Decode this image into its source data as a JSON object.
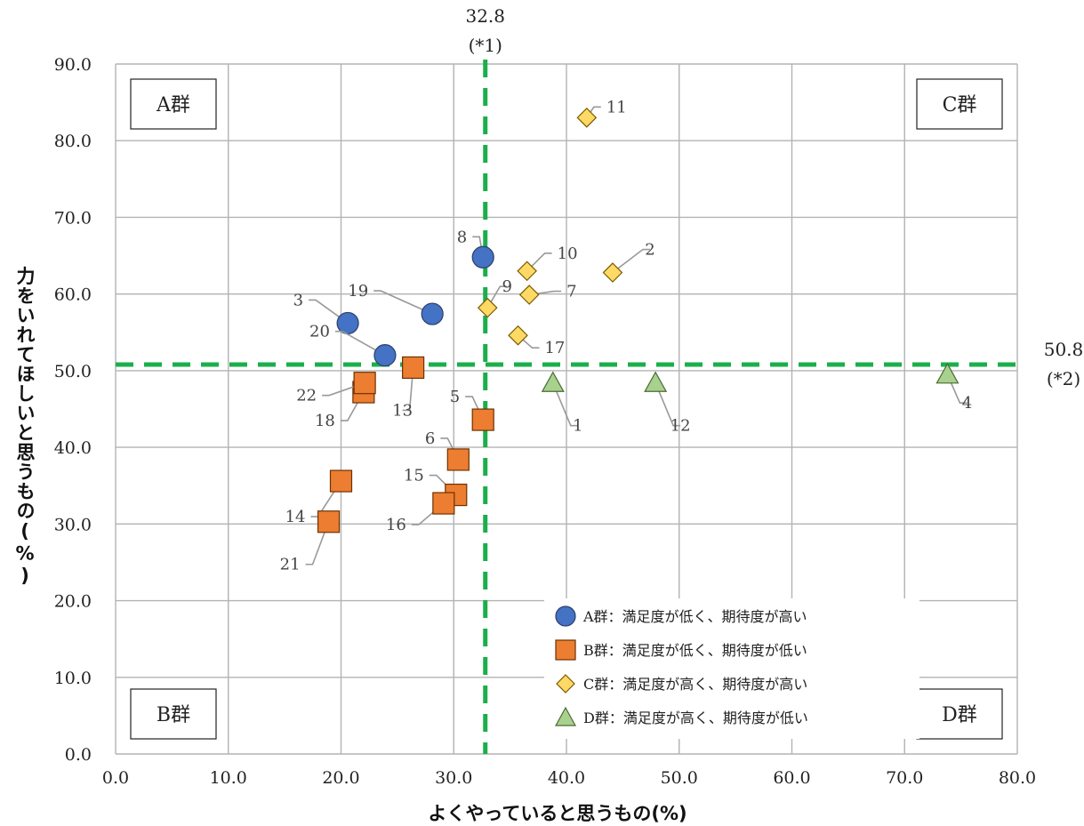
{
  "chart_data": {
    "type": "scatter",
    "xlabel": "よくやっていると思うもの(%)",
    "ylabel": "力をいれてほしいと思うもの(%)",
    "xlim": [
      0,
      80
    ],
    "ylim": [
      0,
      90
    ],
    "x_ticks": [
      "0.0",
      "10.0",
      "20.0",
      "30.0",
      "40.0",
      "50.0",
      "60.0",
      "70.0",
      "80.0"
    ],
    "y_ticks": [
      "0.0",
      "10.0",
      "20.0",
      "30.0",
      "40.0",
      "50.0",
      "60.0",
      "70.0",
      "80.0",
      "90.0"
    ],
    "grid": true,
    "legend_position": "bottom-right",
    "reference_lines": {
      "vertical": {
        "x": 32.8,
        "label_value": "32.8",
        "label_note": "(*1)",
        "color": "#1aaf4b"
      },
      "horizontal": {
        "y": 50.8,
        "label_value": "50.8",
        "label_note": "(*2)",
        "color": "#1aaf4b"
      }
    },
    "quadrants": {
      "top_left": "A群",
      "top_right": "C群",
      "bottom_left": "B群",
      "bottom_right": "D群"
    },
    "series": [
      {
        "name": "A群：満足度が低く、期待度が高い",
        "marker": "circle",
        "color": "#4472c4",
        "points": [
          {
            "label": "3",
            "x": 20.6,
            "y": 56.2
          },
          {
            "label": "8",
            "x": 32.6,
            "y": 64.8
          },
          {
            "label": "19",
            "x": 28.1,
            "y": 57.4
          },
          {
            "label": "20",
            "x": 23.9,
            "y": 52.0
          }
        ]
      },
      {
        "name": "B群：満足度が低く、期待度が低い",
        "marker": "square",
        "color": "#ed7d31",
        "points": [
          {
            "label": "5",
            "x": 32.6,
            "y": 43.6
          },
          {
            "label": "6",
            "x": 30.4,
            "y": 38.4
          },
          {
            "label": "13",
            "x": 26.4,
            "y": 50.4
          },
          {
            "label": "14",
            "x": 20.0,
            "y": 35.6
          },
          {
            "label": "15",
            "x": 30.2,
            "y": 33.8
          },
          {
            "label": "16",
            "x": 29.1,
            "y": 32.7
          },
          {
            "label": "18",
            "x": 22.0,
            "y": 47.2
          },
          {
            "label": "21",
            "x": 18.9,
            "y": 30.3
          },
          {
            "label": "22",
            "x": 22.1,
            "y": 48.4
          }
        ]
      },
      {
        "name": "C群：満足度が高く、期待度が高い",
        "marker": "diamond",
        "color": "#ffd966",
        "points": [
          {
            "label": "2",
            "x": 44.1,
            "y": 62.8
          },
          {
            "label": "7",
            "x": 36.7,
            "y": 59.9
          },
          {
            "label": "9",
            "x": 33.0,
            "y": 58.2
          },
          {
            "label": "10",
            "x": 36.5,
            "y": 63.0
          },
          {
            "label": "11",
            "x": 41.8,
            "y": 83.0
          },
          {
            "label": "17",
            "x": 35.7,
            "y": 54.6
          }
        ]
      },
      {
        "name": "D群：満足度が高く、期待度が低い",
        "marker": "triangle",
        "color": "#a9d18e",
        "points": [
          {
            "label": "1",
            "x": 38.8,
            "y": 48.4
          },
          {
            "label": "4",
            "x": 73.8,
            "y": 49.5
          },
          {
            "label": "12",
            "x": 47.9,
            "y": 48.4
          }
        ]
      }
    ]
  }
}
